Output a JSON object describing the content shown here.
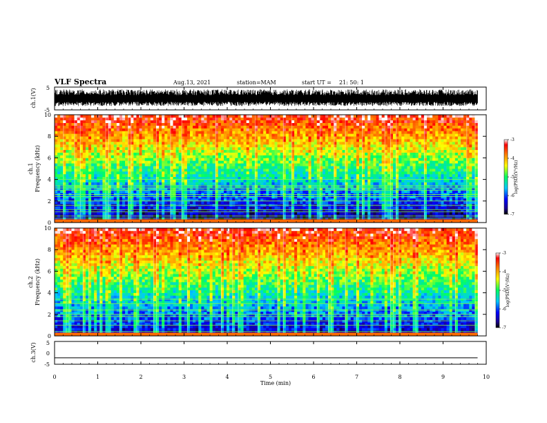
{
  "header": {
    "title": "VLF Spectra",
    "date": "Aug.13, 2021",
    "station": "station=MAM",
    "start_label": "start  UT  =",
    "start_time": "21: 50: 1"
  },
  "chart_data": [
    {
      "type": "line",
      "panel": "ch1-waveform",
      "ylabel": "ch.1(V)",
      "xlim": [
        0,
        10
      ],
      "ylim": [
        -5,
        5
      ],
      "yticks": [
        5,
        -5
      ],
      "description_of_trace": "dense broadband waveform filling roughly -3 to +4 V",
      "trace_color": "#000000"
    },
    {
      "type": "heatmap",
      "panel": "ch1-spectrogram",
      "ylabel_line1": "ch.1",
      "ylabel_line2": "Frequency  (kHz)",
      "xlim": [
        0,
        10
      ],
      "ylim": [
        0,
        10
      ],
      "yticks": [
        0,
        2,
        4,
        6,
        8,
        10
      ],
      "data_extent_min": 9.8,
      "colorbar": {
        "label": "log(PSD)(V²/Hz)",
        "ticks": [
          -3,
          -4,
          -5,
          -6,
          -7
        ],
        "range": [
          -7,
          -3
        ]
      },
      "lines_khz": [
        0.4,
        0.6,
        1.0,
        1.2,
        1.6,
        2.0,
        2.4,
        2.6,
        3.0,
        3.2,
        3.4,
        4.0
      ]
    },
    {
      "type": "heatmap",
      "panel": "ch2-spectrogram",
      "ylabel_line1": "ch.2",
      "ylabel_line2": "Frequency  (kHz)",
      "xlim": [
        0,
        10
      ],
      "ylim": [
        0,
        10
      ],
      "yticks": [
        0,
        2,
        4,
        6,
        8,
        10
      ],
      "data_extent_min": 9.8,
      "colorbar": {
        "label": "log(PSD)(V²/Hz)",
        "ticks": [
          -3,
          -4,
          -5,
          -6,
          -7
        ],
        "range": [
          -7,
          -3
        ]
      },
      "lines_khz": [
        0.4,
        1.0,
        1.4,
        1.8,
        2.0,
        2.4,
        3.0,
        3.4
      ]
    },
    {
      "type": "line",
      "panel": "ch3-waveform",
      "ylabel": "ch.3(V)",
      "xlim": [
        0,
        10
      ],
      "ylim": [
        -5,
        5
      ],
      "yticks": [
        5,
        0,
        -5
      ],
      "x": [
        0,
        9.8
      ],
      "y": [
        -2.2,
        -2.2
      ],
      "trace_color": "#000000"
    }
  ],
  "xaxis": {
    "label": "Time  (min)",
    "ticks": [
      0,
      1,
      2,
      3,
      4,
      5,
      6,
      7,
      8,
      9,
      10
    ]
  }
}
